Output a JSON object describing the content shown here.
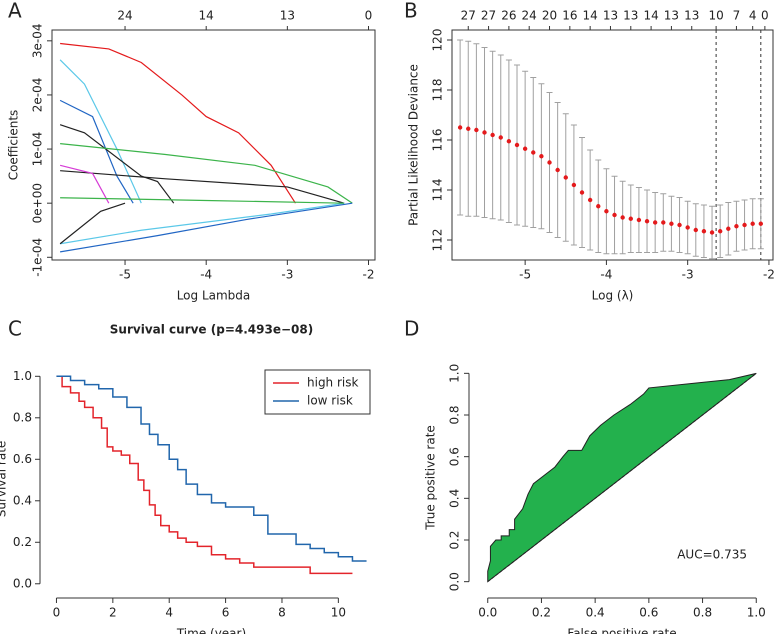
{
  "chart_data": [
    {
      "type": "line",
      "panel_label": "A",
      "x_label": "Log Lambda",
      "y_label": "Coefficients",
      "xlim": [
        -5.9,
        -1.92
      ],
      "xticks": [
        -5,
        -4,
        -3,
        -2
      ],
      "ylim": [
        -0.000105,
        0.00032
      ],
      "yticks": [
        {
          "value": -0.0001,
          "label": "-1e-04"
        },
        {
          "value": 0,
          "label": "0e+00"
        },
        {
          "value": 0.0001,
          "label": "1e-04"
        },
        {
          "value": 0.0002,
          "label": "2e-04"
        },
        {
          "value": 0.0003,
          "label": "3e-04"
        }
      ],
      "top_ticks": [
        {
          "value": -5,
          "label": "24"
        },
        {
          "value": -4,
          "label": "14"
        },
        {
          "value": -3,
          "label": "13"
        },
        {
          "value": -2,
          "label": "0"
        }
      ],
      "series": [
        {
          "color": "#e41a1c",
          "x": [
            -5.8,
            -5.2,
            -4.8,
            -4.3,
            -4.0,
            -3.6,
            -3.2,
            -2.9
          ],
          "values": [
            0.000295,
            0.000285,
            0.00026,
            0.0002,
            0.00016,
            0.00013,
            7e-05,
            0
          ]
        },
        {
          "color": "#5bc8e8",
          "x": [
            -5.8,
            -5.5,
            -5.1,
            -4.8
          ],
          "values": [
            0.000265,
            0.00022,
            0.0001,
            0
          ]
        },
        {
          "color": "#2166c4",
          "x": [
            -5.8,
            -5.4,
            -5.1,
            -4.9
          ],
          "values": [
            0.00019,
            0.00016,
            5e-05,
            0
          ]
        },
        {
          "color": "#222222",
          "x": [
            -5.8,
            -5.5,
            -4.8,
            -4.6,
            -4.4
          ],
          "values": [
            0.000145,
            0.00013,
            5e-05,
            4e-05,
            0
          ]
        },
        {
          "color": "#3cb44b",
          "x": [
            -5.8,
            -4.5,
            -3.4,
            -2.5,
            -2.2
          ],
          "values": [
            0.00011,
            9e-05,
            7e-05,
            3e-05,
            0
          ]
        },
        {
          "color": "#222222",
          "x": [
            -5.8,
            -4.5,
            -3.0,
            -2.3
          ],
          "values": [
            6e-05,
            4.5e-05,
            3e-05,
            0
          ]
        },
        {
          "color": "#d63cd6",
          "x": [
            -5.8,
            -5.4,
            -5.2
          ],
          "values": [
            7e-05,
            5.5e-05,
            0
          ]
        },
        {
          "color": "#5bc8e8",
          "x": [
            -5.8,
            -4.8,
            -3.2,
            -2.3
          ],
          "values": [
            -7.5e-05,
            -5e-05,
            -2e-05,
            0
          ]
        },
        {
          "color": "#2166c4",
          "x": [
            -5.8,
            -4.6,
            -3.5,
            -2.2
          ],
          "values": [
            -9e-05,
            -6e-05,
            -3e-05,
            0
          ]
        },
        {
          "color": "#222222",
          "x": [
            -5.8,
            -5.3,
            -5.0
          ],
          "values": [
            -7.5e-05,
            -1.5e-05,
            0
          ]
        },
        {
          "color": "#3cb44b",
          "x": [
            -5.8,
            -4.0,
            -2.3
          ],
          "values": [
            1e-05,
            5e-06,
            0
          ]
        }
      ]
    },
    {
      "type": "errorbar",
      "panel_label": "B",
      "x_label": "Log (λ)",
      "y_label": "Partial Likelihood Deviance",
      "xlim": [
        -5.9,
        -1.95
      ],
      "xticks": [
        -5,
        -4,
        -3,
        -2
      ],
      "ylim": [
        111.2,
        120.4
      ],
      "yticks": [
        112,
        114,
        116,
        118,
        120
      ],
      "color": "#e41a1c",
      "error_color": "#a0a0a0",
      "vlines": [
        -2.65,
        -2.1
      ],
      "top_ticks": [
        {
          "value": -5.7,
          "label": "27"
        },
        {
          "value": -5.45,
          "label": "27"
        },
        {
          "value": -5.2,
          "label": "26"
        },
        {
          "value": -4.95,
          "label": "24"
        },
        {
          "value": -4.7,
          "label": "20"
        },
        {
          "value": -4.45,
          "label": "16"
        },
        {
          "value": -4.2,
          "label": "14"
        },
        {
          "value": -3.95,
          "label": "13"
        },
        {
          "value": -3.7,
          "label": "13"
        },
        {
          "value": -3.45,
          "label": "14"
        },
        {
          "value": -3.2,
          "label": "13"
        },
        {
          "value": -2.95,
          "label": "13"
        },
        {
          "value": -2.65,
          "label": "10"
        },
        {
          "value": -2.4,
          "label": "7"
        },
        {
          "value": -2.2,
          "label": "4"
        },
        {
          "value": -2.05,
          "label": "0"
        }
      ],
      "x": [
        -5.8,
        -5.7,
        -5.6,
        -5.5,
        -5.4,
        -5.3,
        -5.2,
        -5.1,
        -5.0,
        -4.9,
        -4.8,
        -4.7,
        -4.6,
        -4.5,
        -4.4,
        -4.3,
        -4.2,
        -4.1,
        -4.0,
        -3.9,
        -3.8,
        -3.7,
        -3.6,
        -3.5,
        -3.4,
        -3.3,
        -3.2,
        -3.1,
        -3.0,
        -2.9,
        -2.8,
        -2.7,
        -2.6,
        -2.5,
        -2.4,
        -2.3,
        -2.2,
        -2.1
      ],
      "values": [
        116.5,
        116.45,
        116.4,
        116.3,
        116.2,
        116.1,
        115.95,
        115.8,
        115.65,
        115.5,
        115.35,
        115.1,
        114.8,
        114.5,
        114.2,
        113.9,
        113.6,
        113.35,
        113.15,
        113.0,
        112.9,
        112.85,
        112.8,
        112.75,
        112.7,
        112.7,
        112.65,
        112.6,
        112.5,
        112.4,
        112.35,
        112.3,
        112.35,
        112.45,
        112.55,
        112.6,
        112.65,
        112.65
      ],
      "errors": [
        3.5,
        3.5,
        3.45,
        3.4,
        3.35,
        3.3,
        3.25,
        3.2,
        3.1,
        3.0,
        2.9,
        2.8,
        2.7,
        2.55,
        2.4,
        2.2,
        2.0,
        1.85,
        1.7,
        1.55,
        1.45,
        1.35,
        1.3,
        1.25,
        1.2,
        1.15,
        1.1,
        1.1,
        1.05,
        1.05,
        1.05,
        1.05,
        1.05,
        1.05,
        1.0,
        1.0,
        1.0,
        1.0
      ]
    },
    {
      "type": "step",
      "panel_label": "C",
      "title": "Survival curve (p=4.493e−08)",
      "x_label": "Time (year)",
      "y_label": "Survival rate",
      "xlim": [
        -0.3,
        11.3
      ],
      "xticks": [
        0,
        2,
        4,
        6,
        8,
        10
      ],
      "ylim": [
        -0.03,
        1.04
      ],
      "yticks": [
        {
          "value": 0,
          "label": "0.0"
        },
        0.2,
        0.4,
        0.6,
        0.8,
        {
          "value": 1,
          "label": "1.0"
        }
      ],
      "legend": "top-right",
      "series": [
        {
          "name": "high risk",
          "color": "#e3242b",
          "x": [
            0,
            0.2,
            0.5,
            0.8,
            1.0,
            1.3,
            1.6,
            1.8,
            2.0,
            2.3,
            2.6,
            2.9,
            3.1,
            3.3,
            3.5,
            3.7,
            4.0,
            4.3,
            4.6,
            5.0,
            5.5,
            6.0,
            6.5,
            7.0,
            8.0,
            9.0,
            10.5
          ],
          "values": [
            1,
            0.95,
            0.92,
            0.88,
            0.85,
            0.8,
            0.75,
            0.66,
            0.64,
            0.62,
            0.58,
            0.5,
            0.45,
            0.38,
            0.33,
            0.28,
            0.25,
            0.22,
            0.2,
            0.18,
            0.14,
            0.12,
            0.1,
            0.08,
            0.08,
            0.05,
            0.05
          ]
        },
        {
          "name": "low risk",
          "color": "#2166ac",
          "x": [
            0,
            0.5,
            1.0,
            1.5,
            2.0,
            2.5,
            3.0,
            3.3,
            3.6,
            4.0,
            4.3,
            4.6,
            5.0,
            5.5,
            6.0,
            6.5,
            7.0,
            7.5,
            8.0,
            8.5,
            9.0,
            9.5,
            10.0,
            10.5,
            11.0
          ],
          "values": [
            1,
            0.98,
            0.96,
            0.94,
            0.9,
            0.85,
            0.77,
            0.72,
            0.67,
            0.6,
            0.55,
            0.48,
            0.43,
            0.39,
            0.37,
            0.37,
            0.33,
            0.24,
            0.24,
            0.19,
            0.17,
            0.15,
            0.13,
            0.11,
            0.11
          ]
        }
      ]
    },
    {
      "type": "area",
      "panel_label": "D",
      "x_label": "False positive rate",
      "y_label": "True positive rate",
      "annotation": "AUC=0.735",
      "xlim": [
        -0.04,
        1.04
      ],
      "xticks": [
        {
          "value": 0,
          "label": "0.0"
        },
        0.2,
        0.4,
        0.6,
        0.8,
        {
          "value": 1,
          "label": "1.0"
        }
      ],
      "ylim": [
        -0.04,
        1.04
      ],
      "yticks": [
        {
          "value": 0,
          "label": "0.0"
        },
        0.2,
        0.4,
        0.6,
        0.8,
        {
          "value": 1,
          "label": "1.0"
        }
      ],
      "color": "#23b14d",
      "x": [
        0,
        0,
        0.01,
        0.01,
        0.03,
        0.05,
        0.05,
        0.08,
        0.08,
        0.1,
        0.1,
        0.13,
        0.15,
        0.17,
        0.2,
        0.25,
        0.28,
        0.3,
        0.35,
        0.38,
        0.42,
        0.47,
        0.53,
        0.58,
        0.6,
        0.75,
        0.9,
        1
      ],
      "values": [
        0,
        0.05,
        0.1,
        0.17,
        0.2,
        0.2,
        0.22,
        0.22,
        0.25,
        0.25,
        0.3,
        0.35,
        0.42,
        0.47,
        0.5,
        0.55,
        0.6,
        0.63,
        0.63,
        0.7,
        0.75,
        0.8,
        0.85,
        0.9,
        0.93,
        0.95,
        0.97,
        1
      ]
    }
  ]
}
